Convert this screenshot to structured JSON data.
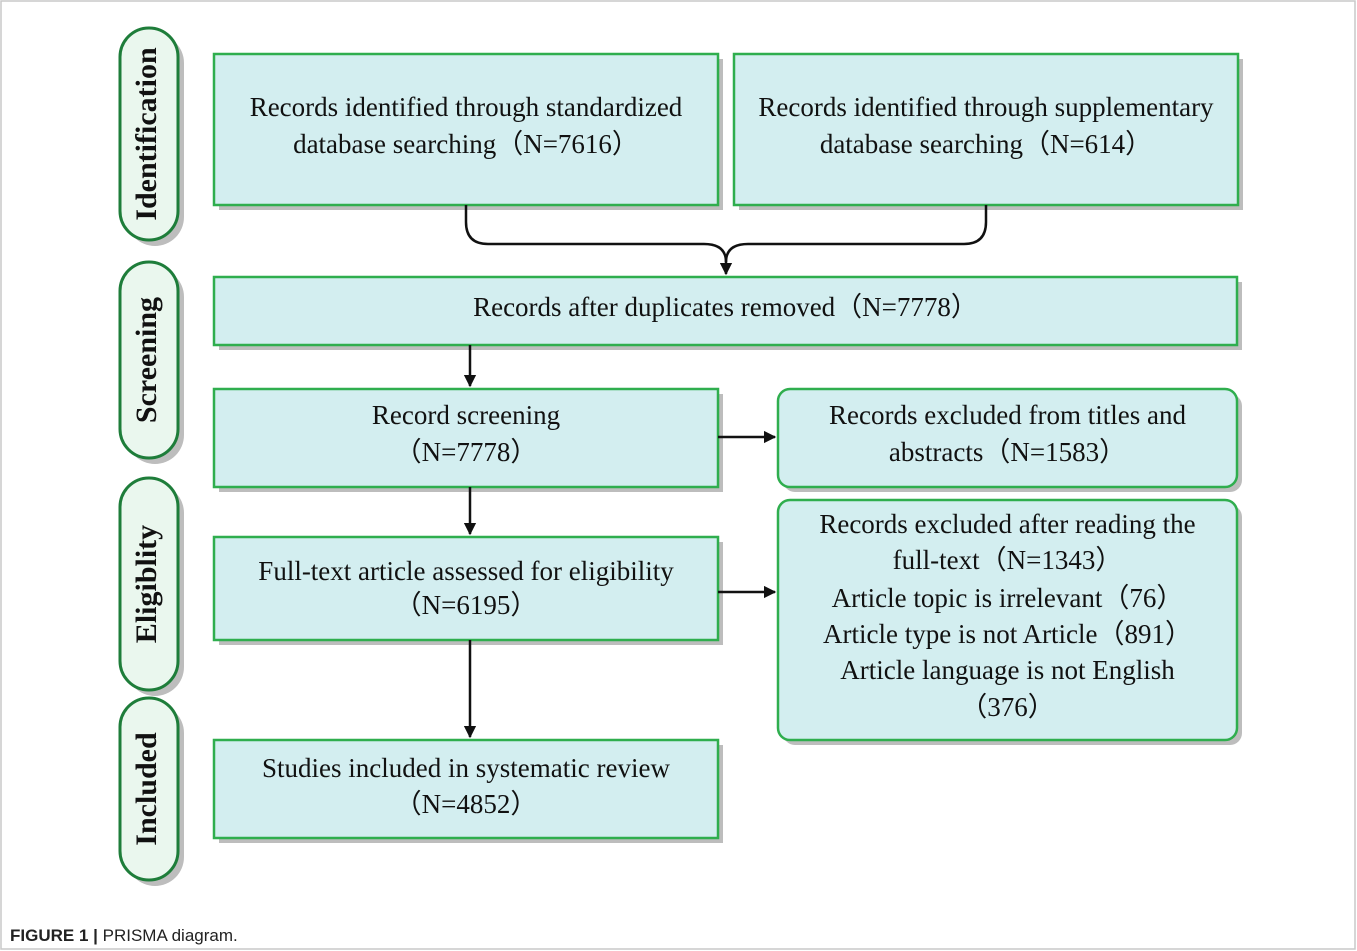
{
  "phases": [
    "Identification",
    "Screening",
    "Eligiblity",
    "Included"
  ],
  "boxes": [
    {
      "lines": [
        "Records identified through standardized",
        "database searching（N=7616）"
      ]
    },
    {
      "lines": [
        "Records identified through supplementary",
        "database searching（N=614）"
      ]
    },
    {
      "lines": [
        "Records after duplicates removed（N=7778）"
      ]
    },
    {
      "lines": [
        "Record screening",
        "（N=7778）"
      ]
    },
    {
      "lines": [
        "Records excluded from titles and",
        "abstracts（N=1583）"
      ]
    },
    {
      "lines": [
        "Full-text article assessed for eligibility",
        "（N=6195）"
      ]
    },
    {
      "lines": [
        "Records excluded after reading the",
        "full-text（N=1343）",
        "Article topic is irrelevant（76）",
        "Article type is not Article（891）",
        "Article language is not English",
        "（376）"
      ]
    },
    {
      "lines": [
        "Studies included in systematic review",
        "（N=4852）"
      ]
    }
  ],
  "caption": {
    "label": "FIGURE 1 |",
    "text": "PRISMA diagram."
  }
}
